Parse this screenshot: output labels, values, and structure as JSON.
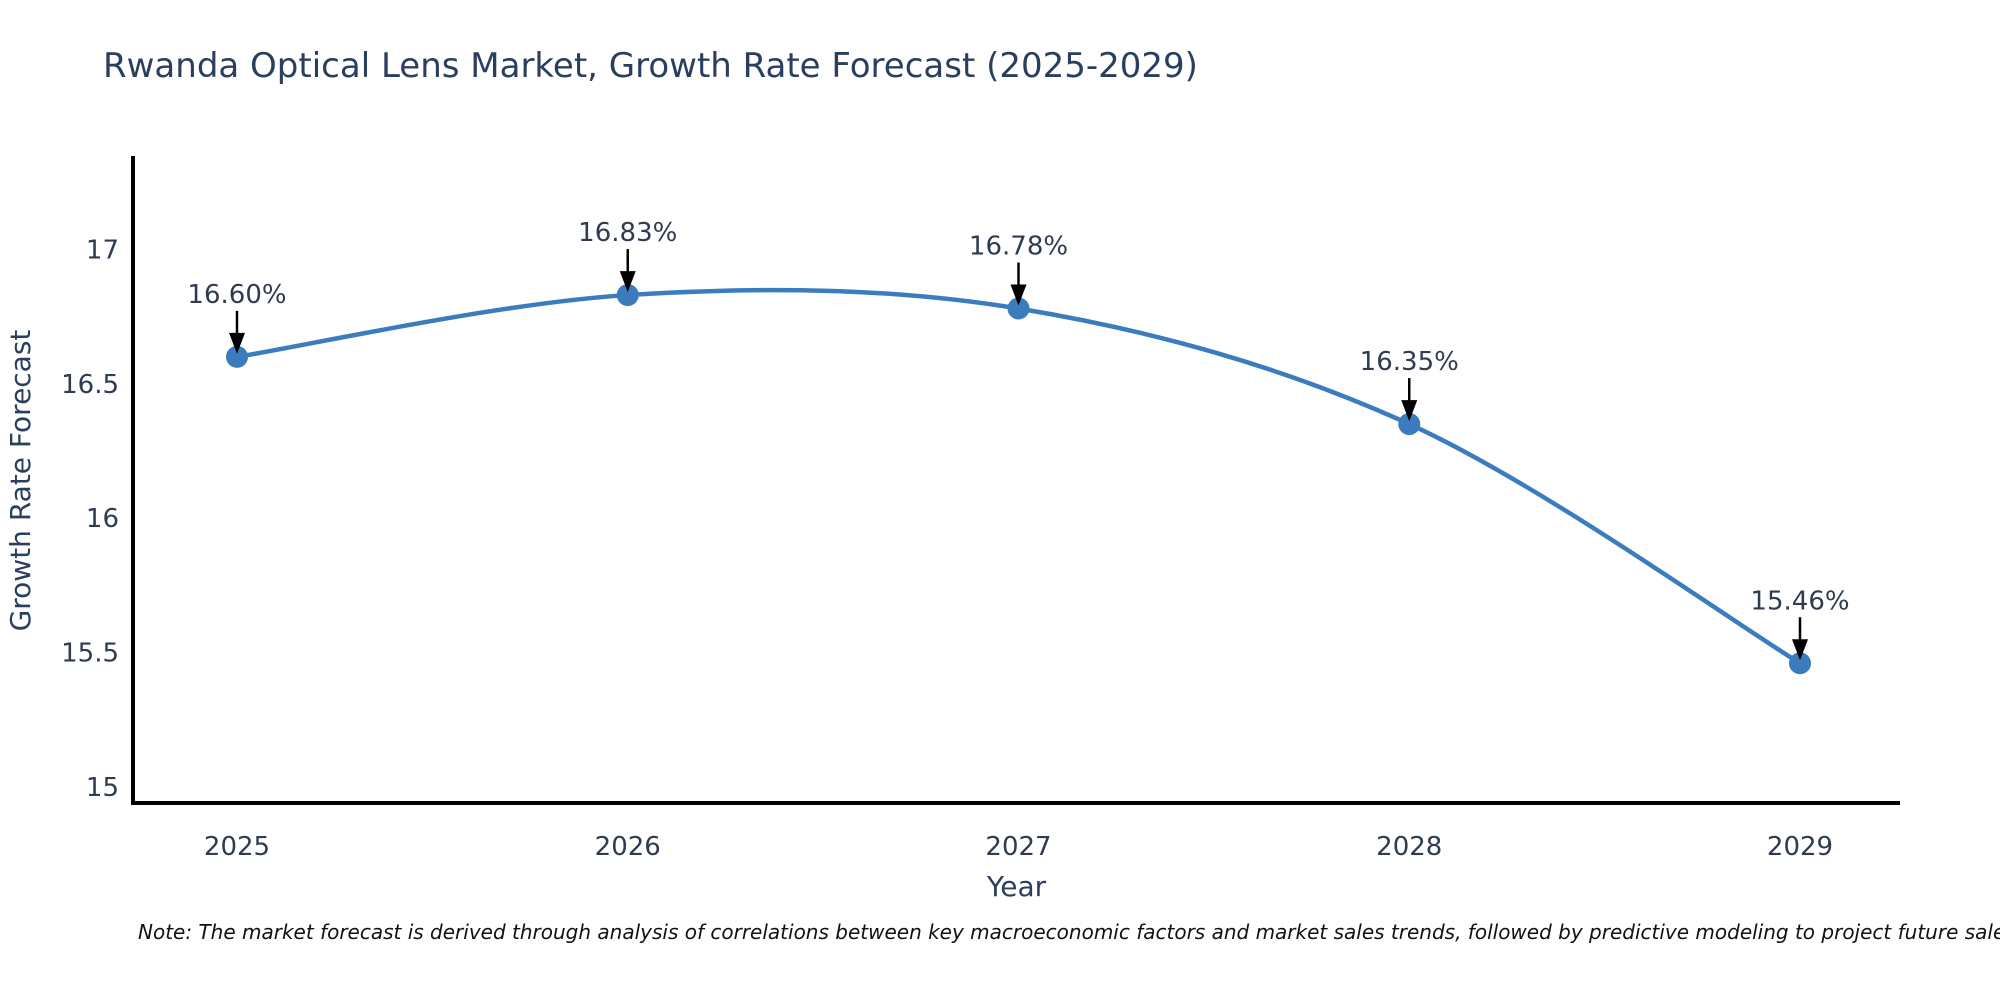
{
  "title": "Rwanda Optical Lens Market, Growth Rate Forecast (2025-2029)",
  "note": "Note: The market forecast is derived through analysis of correlations between key macroeconomic factors and market sales trends, followed by predictive modeling to project future sales.",
  "chart_data": {
    "type": "line",
    "title": "Rwanda Optical Lens Market, Growth Rate Forecast (2025-2029)",
    "xlabel": "Year",
    "ylabel": "Growth Rate Forecast",
    "x": [
      2025,
      2026,
      2027,
      2028,
      2029
    ],
    "y": [
      16.6,
      16.83,
      16.78,
      16.35,
      15.46
    ],
    "point_labels": [
      "16.60%",
      "16.83%",
      "16.78%",
      "16.35%",
      "15.46%"
    ],
    "xtick_labels": [
      "2025",
      "2026",
      "2027",
      "2028",
      "2029"
    ],
    "ytick_values": [
      15,
      15.5,
      16,
      16.5,
      17
    ],
    "ytick_labels": [
      "15",
      "15.5",
      "16",
      "16.5",
      "17"
    ],
    "ylim": [
      14.94,
      17.34
    ],
    "xlim": [
      2024.73,
      2029.26
    ],
    "grid": false,
    "legend": "none",
    "curve": "smooth",
    "annotations": "black arrow pointing down from each label to its data point"
  },
  "colors": {
    "line": "#3a7cbe",
    "marker": "#3a7cbe",
    "axis_line": "#000000",
    "arrow": "#000000",
    "title_text": "#2a3f5f",
    "axis_text": "#2a3f5f",
    "tick_text": "#2e3b50",
    "note_text": "#111111",
    "background": "#ffffff"
  }
}
